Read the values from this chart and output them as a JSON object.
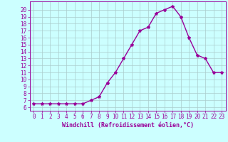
{
  "x": [
    0,
    1,
    2,
    3,
    4,
    5,
    6,
    7,
    8,
    9,
    10,
    11,
    12,
    13,
    14,
    15,
    16,
    17,
    18,
    19,
    20,
    21,
    22,
    23
  ],
  "y": [
    6.5,
    6.5,
    6.5,
    6.5,
    6.5,
    6.5,
    6.5,
    7.0,
    7.5,
    9.5,
    11.0,
    13.0,
    15.0,
    17.0,
    17.5,
    19.5,
    20.0,
    20.5,
    19.0,
    16.0,
    13.5,
    13.0,
    11.0,
    11.0
  ],
  "line_color": "#990099",
  "marker": "*",
  "marker_size": 3,
  "xlabel": "Windchill (Refroidissement éolien,°C)",
  "xlabel_fontsize": 6,
  "ytick_values": [
    6,
    7,
    8,
    9,
    10,
    11,
    12,
    13,
    14,
    15,
    16,
    17,
    18,
    19,
    20
  ],
  "ylim": [
    5.5,
    21.2
  ],
  "xlim": [
    -0.5,
    23.5
  ],
  "background_color": "#ccffff",
  "grid_color": "#aacccc",
  "tick_fontsize": 5.5,
  "linewidth": 1.0
}
